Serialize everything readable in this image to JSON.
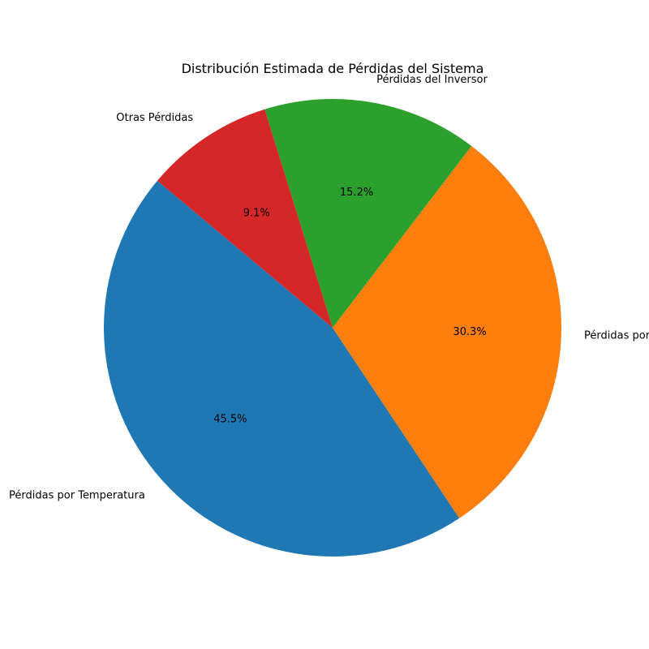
{
  "chart_data": {
    "type": "pie",
    "title": "Distribución Estimada de Pérdidas del Sistema",
    "start_angle_deg": 140,
    "direction": "counterclockwise",
    "legend": "none",
    "slices": [
      {
        "label": "Pérdidas por Temperatura",
        "value": 45.5,
        "pct_label": "45.5%",
        "color": "#1f77b4"
      },
      {
        "label": "Pérdidas por",
        "value": 30.3,
        "pct_label": "30.3%",
        "color": "#ff7f0e"
      },
      {
        "label": "Pérdidas del Inversor",
        "value": 15.2,
        "pct_label": "15.2%",
        "color": "#2ca02c"
      },
      {
        "label": "Otras Pérdidas",
        "value": 9.1,
        "pct_label": "9.1%",
        "color": "#d62728"
      }
    ]
  }
}
